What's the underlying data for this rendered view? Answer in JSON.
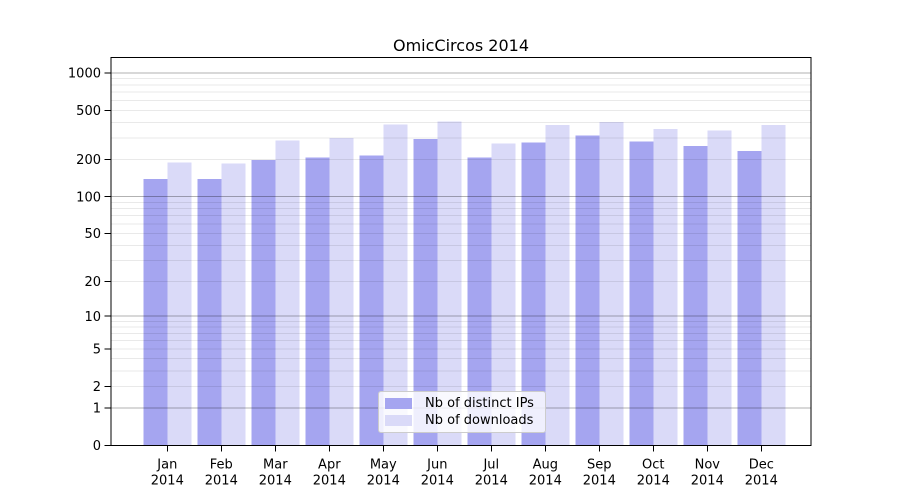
{
  "page": {
    "background_color": "#ffffff"
  },
  "chart": {
    "text_color": "#000000",
    "axis_color": "#000000",
    "major_grid_color": "rgba(0,0,0,0.30)",
    "minor_grid_color": "rgba(0,0,0,0.085)",
    "legend_border_color": "#cccccc"
  },
  "chart_data": {
    "type": "bar",
    "title": "OmicCircos 2014",
    "xlabel": "",
    "ylabel": "",
    "categories": [
      "Jan",
      "Feb",
      "Mar",
      "Apr",
      "May",
      "Jun",
      "Jul",
      "Aug",
      "Sep",
      "Oct",
      "Nov",
      "Dec"
    ],
    "category_year": "2014",
    "series": [
      {
        "name": "Nb of distinct IPs",
        "color": "#a5a5f0",
        "values": [
          139,
          139,
          199,
          208,
          215,
          294,
          208,
          275,
          312,
          280,
          257,
          235
        ]
      },
      {
        "name": "Nb of downloads",
        "color": "#dadaf8",
        "values": [
          189,
          186,
          286,
          300,
          384,
          406,
          270,
          382,
          404,
          353,
          344,
          382
        ]
      }
    ],
    "yscale": "log1p",
    "yticks": [
      0,
      1,
      2,
      5,
      10,
      20,
      50,
      100,
      200,
      500,
      1000
    ],
    "ylim": [
      0,
      1335
    ],
    "grid": true,
    "grid_on_top_of_bars": true,
    "legend_position": "lower center"
  }
}
